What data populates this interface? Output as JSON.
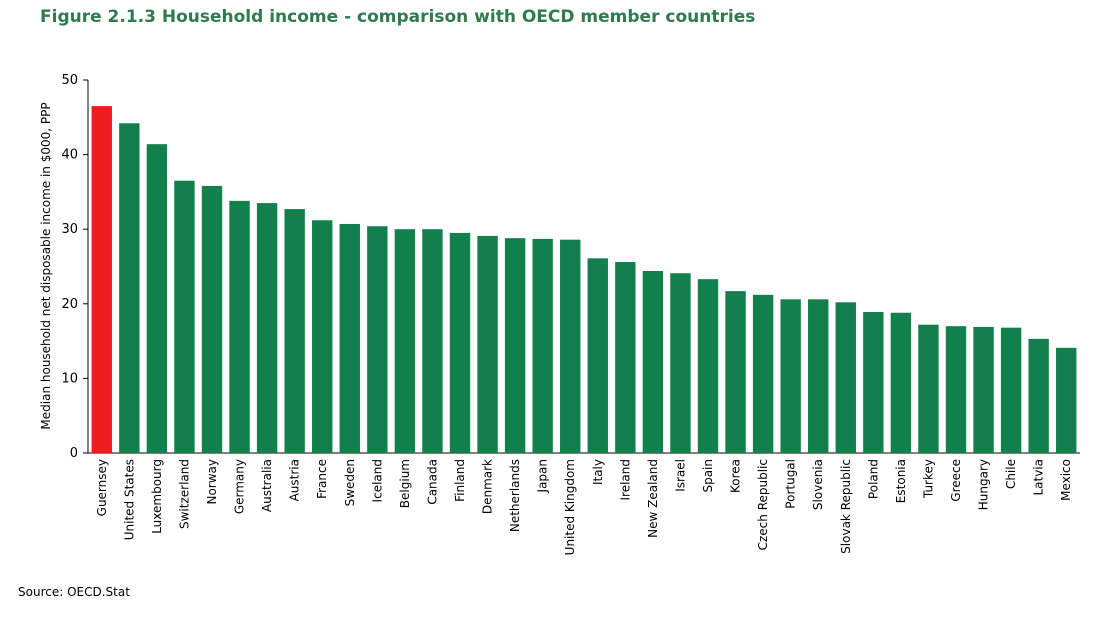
{
  "chart_data": {
    "type": "bar",
    "title": "Figure 2.1.3 Household income - comparison with OECD member countries",
    "y_label": "Median household net disposable income in $000, PPP",
    "source": "Source: OECD.Stat",
    "categories": [
      "Guernsey",
      "United States",
      "Luxembourg",
      "Switzerland",
      "Norway",
      "Germany",
      "Australia",
      "Austria",
      "France",
      "Sweden",
      "Iceland",
      "Belgium",
      "Canada",
      "Finland",
      "Denmark",
      "Netherlands",
      "Japan",
      "United Kingdom",
      "Italy",
      "Ireland",
      "New Zealand",
      "Israel",
      "Spain",
      "Korea",
      "Czech Republic",
      "Portugal",
      "Slovenia",
      "Slovak Republic",
      "Poland",
      "Estonia",
      "Turkey",
      "Greece",
      "Hungary",
      "Chile",
      "Latvia",
      "Mexico"
    ],
    "values": [
      46.5,
      44.2,
      41.4,
      36.5,
      35.8,
      33.8,
      33.5,
      32.7,
      31.2,
      30.7,
      30.4,
      30.0,
      30.0,
      29.5,
      29.1,
      28.8,
      28.7,
      28.6,
      26.1,
      25.6,
      24.4,
      24.1,
      23.3,
      21.7,
      21.2,
      20.6,
      20.6,
      20.2,
      18.9,
      18.8,
      17.2,
      17.0,
      16.9,
      16.8,
      15.3,
      14.1
    ],
    "colors": [
      "#ee1c1c",
      "#11804c",
      "#11804c",
      "#11804c",
      "#11804c",
      "#11804c",
      "#11804c",
      "#11804c",
      "#11804c",
      "#11804c",
      "#11804c",
      "#11804c",
      "#11804c",
      "#11804c",
      "#11804c",
      "#11804c",
      "#11804c",
      "#11804c",
      "#11804c",
      "#11804c",
      "#11804c",
      "#11804c",
      "#11804c",
      "#11804c",
      "#11804c",
      "#11804c",
      "#11804c",
      "#11804c",
      "#11804c",
      "#11804c",
      "#11804c",
      "#11804c",
      "#11804c",
      "#11804c",
      "#11804c",
      "#11804c"
    ],
    "ylim": [
      0,
      50
    ],
    "yticks": [
      0,
      10,
      20,
      30,
      40,
      50
    ],
    "grid": false
  }
}
